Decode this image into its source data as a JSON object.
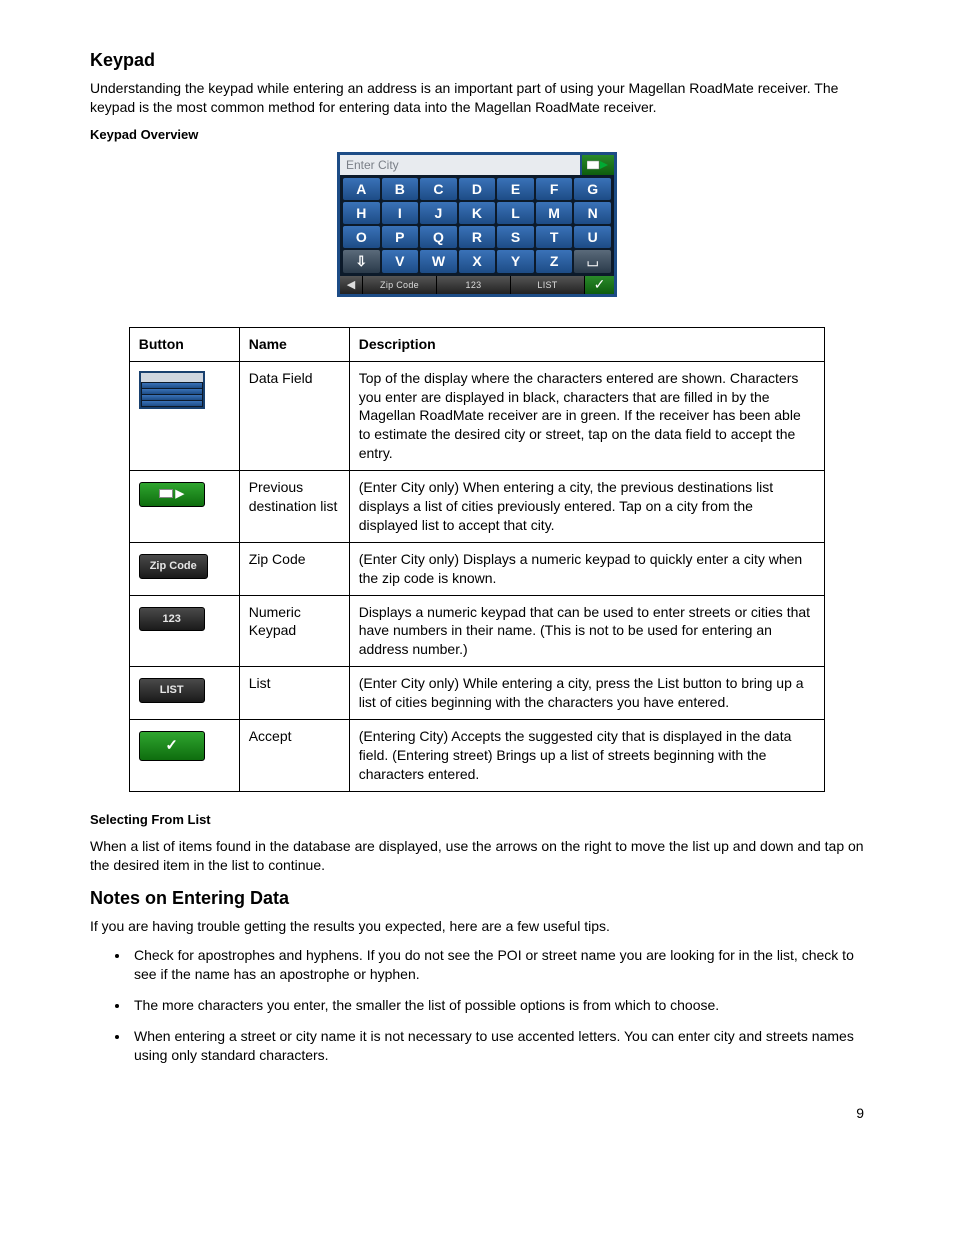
{
  "h_keypad": "Keypad",
  "p_intro": "Understanding the keypad while entering an address is an important part of using your Magellan RoadMate receiver. The keypad is the most common method for entering data into the Magellan RoadMate receiver.",
  "sub_overview": "Keypad Overview",
  "kp": {
    "placeholder": "Enter City",
    "keys": [
      "A",
      "B",
      "C",
      "D",
      "E",
      "F",
      "G",
      "H",
      "I",
      "J",
      "K",
      "L",
      "M",
      "N",
      "O",
      "P",
      "Q",
      "R",
      "S",
      "T",
      "U",
      "⇩",
      "V",
      "W",
      "X",
      "Y",
      "Z",
      "⎵"
    ],
    "bottom": {
      "back": "◀",
      "zip": "Zip Code",
      "num": "123",
      "list": "LIST",
      "ok": "✓"
    }
  },
  "table": {
    "headers": {
      "button": "Button",
      "name": "Name",
      "desc": "Description"
    },
    "rows": [
      {
        "icon": "mini",
        "name": "Data Field",
        "desc": "Top of the display where the characters entered are shown.  Characters you enter are displayed in black, characters that are filled in by the Magellan RoadMate receiver are in green.  If the receiver has been able to estimate the desired city or street, tap on the data field to accept the entry."
      },
      {
        "icon": "prev",
        "name": "Previous destination list",
        "desc": "(Enter City only)  When entering a city, the previous destinations list displays a list of cities previously entered.  Tap on a city from the displayed list to accept that city."
      },
      {
        "icon": "zip",
        "name": "Zip Code",
        "desc": "(Enter City only)  Displays a numeric keypad to quickly enter a city when the zip code is known."
      },
      {
        "icon": "num",
        "name": "Numeric Keypad",
        "desc": "Displays a numeric keypad that can be used to enter streets or cities that have numbers in their name.  (This is not to be used for entering an address number.)"
      },
      {
        "icon": "list",
        "name": "List",
        "desc": "(Enter City only)  While entering a city, press the List button to bring up a list of cities beginning with the characters you have entered."
      },
      {
        "icon": "accept",
        "name": "Accept",
        "desc": "(Entering City)  Accepts the suggested city that is displayed in the data field.  (Entering street) Brings up a list of streets beginning with the characters entered."
      }
    ]
  },
  "pill_labels": {
    "zip": "Zip Code",
    "num": "123",
    "list": "LIST",
    "accept": "✓"
  },
  "sub_select": "Selecting From List",
  "p_select": "When a list of items found in the database are displayed, use the arrows on the right to move the list up and down and tap on the desired item in the list to continue.",
  "h_notes": "Notes on Entering Data",
  "p_notes": "If you are having trouble getting the results you expected, here are a few useful tips.",
  "tips": [
    "Check for apostrophes and hyphens. If you do not see the POI or street name you are looking for in the list, check to see if the name has an apostrophe or hyphen.",
    "The more characters you enter, the smaller the list of possible options is from which to choose.",
    "When entering a street or city name it is not necessary to use accented letters. You can enter city and streets names using only standard characters."
  ],
  "page": "9"
}
